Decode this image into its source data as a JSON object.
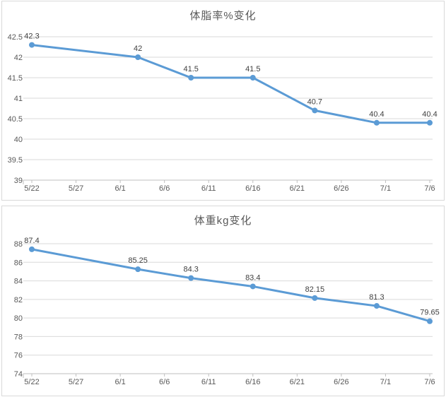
{
  "page": {
    "background": "#ffffff"
  },
  "colors": {
    "line": "#5b9bd5",
    "marker": "#5b9bd5",
    "grid": "#d9d9d9",
    "axis": "#bfbfbf",
    "tick_label": "#595959",
    "data_label": "#404040",
    "title": "#595959",
    "chart_border": "#d9d9d9"
  },
  "chart_data": [
    {
      "type": "line",
      "title": "体脂率%变化",
      "series": [
        {
          "values": [
            42.3,
            42,
            41.5,
            41.5,
            40.7,
            40.4,
            40.4
          ]
        }
      ],
      "data_labels": [
        "42.3",
        "42",
        "41.5",
        "41.5",
        "40.7",
        "40.4",
        "40.4"
      ],
      "x_days": [
        0,
        12,
        18,
        25,
        32,
        39,
        45
      ],
      "x_ticks": {
        "labels": [
          "5/22",
          "5/27",
          "6/1",
          "6/6",
          "6/11",
          "6/16",
          "6/21",
          "6/26",
          "7/1",
          "7/6"
        ],
        "days": [
          0,
          5,
          10,
          15,
          20,
          25,
          30,
          35,
          40,
          45
        ]
      },
      "y_ticks": {
        "labels": [
          "42.5",
          "42",
          "41.5",
          "41",
          "40.5",
          "40",
          "39.5",
          "39"
        ],
        "values": [
          42.5,
          42,
          41.5,
          41,
          40.5,
          40,
          39.5,
          39
        ]
      },
      "ylim": [
        39,
        42.5
      ],
      "xlim_days": [
        0,
        45
      ],
      "grid": "horizontal",
      "legend": "none"
    },
    {
      "type": "line",
      "title": "体重kg变化",
      "series": [
        {
          "values": [
            87.4,
            85.25,
            84.3,
            83.4,
            82.15,
            81.3,
            79.65
          ]
        }
      ],
      "data_labels": [
        "87.4",
        "85.25",
        "84.3",
        "83.4",
        "82.15",
        "81.3",
        "79.65"
      ],
      "x_days": [
        0,
        12,
        18,
        25,
        32,
        39,
        45
      ],
      "x_ticks": {
        "labels": [
          "5/22",
          "5/27",
          "6/1",
          "6/6",
          "6/11",
          "6/16",
          "6/21",
          "6/26",
          "7/1",
          "7/6"
        ],
        "days": [
          0,
          5,
          10,
          15,
          20,
          25,
          30,
          35,
          40,
          45
        ]
      },
      "y_ticks": {
        "labels": [
          "88",
          "86",
          "84",
          "82",
          "80",
          "78",
          "76",
          "74"
        ],
        "values": [
          88,
          86,
          84,
          82,
          80,
          78,
          76,
          74
        ]
      },
      "ylim": [
        74,
        88
      ],
      "xlim_days": [
        0,
        45
      ],
      "grid": "horizontal",
      "legend": "none"
    }
  ]
}
